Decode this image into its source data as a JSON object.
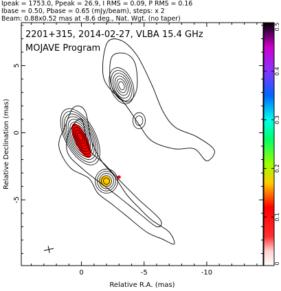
{
  "header": {
    "line1": "Ipeak = 1753.0, Ppeak = 26.9, I RMS = 0.09, P RMS = 0.16",
    "line2": "Ibase = 0.50, Pbase = 0.65 (mJy/beam), steps: x 2",
    "line3": "Beam: 0.88x0.52 mas at -8.6 deg., Nat. Wgt. (no taper)"
  },
  "title": {
    "line1": "2201+315, 2014-02-27, VLBA 15.4 GHz",
    "line2": "MOJAVE Program"
  },
  "chart_data": {
    "type": "heatmap",
    "xlabel": "Relative R.A. (mas)",
    "ylabel": "Relative Declination (mas)",
    "xlim": [
      4.8,
      -14.5
    ],
    "ylim": [
      -9.9,
      8.2
    ],
    "x_ticks": [
      {
        "value": 0,
        "label": "0"
      },
      {
        "value": -5,
        "label": "-5"
      },
      {
        "value": -10,
        "label": "-10"
      }
    ],
    "y_ticks": [
      {
        "value": 5,
        "label": "5"
      },
      {
        "value": 0,
        "label": "0"
      },
      {
        "value": -5,
        "label": "-5"
      }
    ],
    "colorbar": {
      "range": [
        0,
        0.5
      ],
      "ticks": [
        {
          "value": 0.5,
          "label": "0.5"
        },
        {
          "value": 0.4,
          "label": "0.4"
        },
        {
          "value": 0.3,
          "label": "0.3"
        },
        {
          "value": 0.2,
          "label": "0.2"
        },
        {
          "value": 0.1,
          "label": "0.1"
        },
        {
          "value": 0,
          "label": "0"
        }
      ],
      "colors": [
        "#ffffff",
        "#ff0000",
        "#ffcc00",
        "#66ff00",
        "#00ffcc",
        "#0055ff",
        "#cc33ff",
        "#000000"
      ]
    },
    "components": [
      {
        "ra": 0.1,
        "dec": -0.3,
        "sx": 1.2,
        "sy": 2.3,
        "rot": -28,
        "levels": 10
      },
      {
        "ra": -3.2,
        "dec": 3.5,
        "sx": 0.9,
        "sy": 1.4,
        "rot": -20,
        "levels": 6
      },
      {
        "ra": -2.0,
        "dec": -3.6,
        "sx": 0.9,
        "sy": 0.9,
        "rot": 0,
        "levels": 5
      },
      {
        "ra": -4.6,
        "dec": 0.9,
        "sx": 0.5,
        "sy": 0.6,
        "rot": 0,
        "levels": 2
      }
    ],
    "jet_contours": [
      [
        [
          1.3,
          0.5
        ],
        [
          1.8,
          -1.0
        ],
        [
          0.9,
          -2.6
        ],
        [
          -0.6,
          -3.4
        ],
        [
          -1.3,
          -4.5
        ],
        [
          -2.4,
          -5.3
        ],
        [
          -3.6,
          -6.2
        ],
        [
          -5.2,
          -7.4
        ],
        [
          -6.4,
          -7.9
        ],
        [
          -7.4,
          -8.3
        ],
        [
          -7.0,
          -7.4
        ],
        [
          -5.6,
          -6.5
        ],
        [
          -4.6,
          -5.6
        ],
        [
          -3.6,
          -4.6
        ],
        [
          -2.6,
          -3.2
        ],
        [
          -1.6,
          -2.1
        ],
        [
          -0.8,
          -0.6
        ],
        [
          -0.3,
          1.6
        ],
        [
          0.6,
          1.9
        ]
      ],
      [
        [
          1.0,
          0.0
        ],
        [
          1.1,
          -1.5
        ],
        [
          -0.1,
          -2.7
        ],
        [
          -1.6,
          -3.8
        ],
        [
          -3.0,
          -4.8
        ],
        [
          -4.6,
          -6.0
        ],
        [
          -6.0,
          -7.0
        ],
        [
          -6.3,
          -6.5
        ],
        [
          -4.6,
          -5.0
        ],
        [
          -3.2,
          -3.7
        ],
        [
          -1.8,
          -2.3
        ],
        [
          -0.6,
          -1.2
        ],
        [
          0.0,
          1.0
        ]
      ],
      [
        [
          -2.0,
          6.6
        ],
        [
          -1.8,
          4.0
        ],
        [
          -3.5,
          2.1
        ],
        [
          -4.6,
          0.6
        ],
        [
          -5.6,
          -0.6
        ],
        [
          -7.4,
          -1.2
        ],
        [
          -9.0,
          -1.2
        ],
        [
          -10.0,
          -2.1
        ],
        [
          -10.6,
          -1.3
        ],
        [
          -9.2,
          -0.3
        ],
        [
          -7.5,
          0.4
        ],
        [
          -6.5,
          1.6
        ],
        [
          -5.6,
          3.6
        ],
        [
          -4.4,
          5.8
        ],
        [
          -3.1,
          6.9
        ]
      ],
      [
        [
          -2.4,
          5.6
        ],
        [
          -2.4,
          3.5
        ],
        [
          -3.6,
          2.3
        ],
        [
          -4.4,
          3.2
        ],
        [
          -4.3,
          5.1
        ],
        [
          -3.5,
          5.9
        ]
      ]
    ],
    "colored_spots": [
      {
        "ra": 0.0,
        "dec": -0.6,
        "rx": 0.5,
        "ry": 1.4,
        "rot": -25,
        "value": 0.08
      },
      {
        "ra": -1.9,
        "dec": -3.6,
        "rx": 0.45,
        "ry": 0.4,
        "rot": 0,
        "value": 0.17
      },
      {
        "ra": -3.0,
        "dec": -3.3,
        "rx": 0.14,
        "ry": 0.12,
        "rot": 0,
        "value": 0.05
      }
    ],
    "beam": {
      "ra": 2.6,
      "dec": -8.7
    }
  }
}
